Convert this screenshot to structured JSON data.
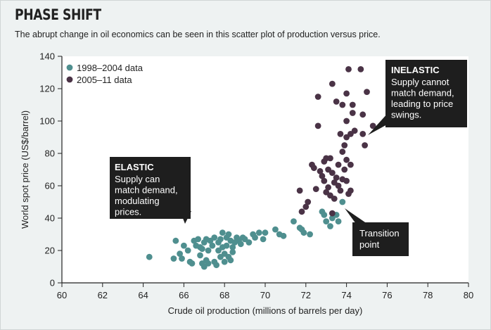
{
  "header": {
    "title": "PHASE SHIFT",
    "subtitle": "The abrupt change in oil economics can be seen in this scatter plot of production versus price."
  },
  "chart_data": {
    "type": "scatter",
    "title": "PHASE SHIFT",
    "subtitle": "The abrupt change in oil economics can be seen in this scatter plot of production versus price.",
    "xlabel": "Crude oil production (millions of barrels per day)",
    "ylabel": "World spot price (US$/barrel)",
    "xlim": [
      60,
      80
    ],
    "ylim": [
      0,
      140
    ],
    "xticks": [
      "60",
      "62",
      "64",
      "66",
      "68",
      "70",
      "72",
      "74",
      "76",
      "78",
      "80"
    ],
    "yticks": [
      "0",
      "20",
      "40",
      "60",
      "80",
      "100",
      "120",
      "140"
    ],
    "grid": false,
    "legend": "top-left",
    "series": [
      {
        "name": "1998–2004 data",
        "color": "#4f8f8f",
        "points": [
          [
            64.3,
            16
          ],
          [
            65.5,
            15
          ],
          [
            65.6,
            26
          ],
          [
            65.8,
            18
          ],
          [
            65.9,
            15
          ],
          [
            66.0,
            23
          ],
          [
            66.2,
            20
          ],
          [
            66.3,
            13
          ],
          [
            66.4,
            12
          ],
          [
            66.5,
            26
          ],
          [
            66.6,
            23
          ],
          [
            66.7,
            27
          ],
          [
            66.8,
            22
          ],
          [
            66.8,
            17
          ],
          [
            66.9,
            21
          ],
          [
            66.9,
            12
          ],
          [
            67.0,
            25
          ],
          [
            67.0,
            10
          ],
          [
            67.1,
            27
          ],
          [
            67.1,
            14
          ],
          [
            67.2,
            20
          ],
          [
            67.2,
            12
          ],
          [
            67.3,
            26
          ],
          [
            67.4,
            23
          ],
          [
            67.5,
            28
          ],
          [
            67.5,
            13
          ],
          [
            67.6,
            11
          ],
          [
            67.7,
            25
          ],
          [
            67.7,
            20
          ],
          [
            67.8,
            27
          ],
          [
            67.8,
            16
          ],
          [
            67.9,
            31
          ],
          [
            67.9,
            22
          ],
          [
            68.0,
            18
          ],
          [
            68.0,
            13
          ],
          [
            68.1,
            28
          ],
          [
            68.1,
            23
          ],
          [
            68.2,
            30
          ],
          [
            68.2,
            16
          ],
          [
            68.3,
            26
          ],
          [
            68.3,
            14
          ],
          [
            68.4,
            22
          ],
          [
            68.4,
            19
          ],
          [
            68.5,
            25
          ],
          [
            68.6,
            28
          ],
          [
            68.7,
            26
          ],
          [
            68.8,
            24
          ],
          [
            68.9,
            28
          ],
          [
            69.0,
            27
          ],
          [
            69.2,
            25
          ],
          [
            69.4,
            30
          ],
          [
            69.5,
            28
          ],
          [
            69.7,
            31
          ],
          [
            69.9,
            27
          ],
          [
            70.0,
            31
          ],
          [
            70.5,
            33
          ],
          [
            70.7,
            30
          ],
          [
            70.9,
            29
          ],
          [
            71.4,
            38
          ],
          [
            71.7,
            34
          ],
          [
            71.8,
            33
          ],
          [
            71.9,
            31
          ],
          [
            72.2,
            30
          ],
          [
            72.8,
            44
          ],
          [
            72.9,
            42
          ],
          [
            73.0,
            38
          ],
          [
            73.2,
            35
          ],
          [
            73.3,
            40
          ],
          [
            73.5,
            42
          ],
          [
            73.6,
            38
          ],
          [
            73.8,
            50
          ]
        ]
      },
      {
        "name": "2005–11 data",
        "color": "#4a3346",
        "points": [
          [
            71.7,
            57
          ],
          [
            71.8,
            44
          ],
          [
            72.0,
            47
          ],
          [
            72.1,
            50
          ],
          [
            72.3,
            73
          ],
          [
            72.4,
            71
          ],
          [
            72.5,
            58
          ],
          [
            72.6,
            115
          ],
          [
            72.6,
            97
          ],
          [
            72.7,
            69
          ],
          [
            72.8,
            66
          ],
          [
            72.9,
            75
          ],
          [
            72.9,
            63
          ],
          [
            73.0,
            77
          ],
          [
            73.0,
            56
          ],
          [
            73.1,
            70
          ],
          [
            73.1,
            59
          ],
          [
            73.2,
            77
          ],
          [
            73.2,
            54
          ],
          [
            73.3,
            43
          ],
          [
            73.3,
            68
          ],
          [
            73.3,
            123
          ],
          [
            73.4,
            52
          ],
          [
            73.4,
            62
          ],
          [
            73.5,
            112
          ],
          [
            73.5,
            65
          ],
          [
            73.6,
            60
          ],
          [
            73.6,
            73
          ],
          [
            73.7,
            92
          ],
          [
            73.7,
            57
          ],
          [
            73.8,
            110
          ],
          [
            73.8,
            81
          ],
          [
            73.8,
            64
          ],
          [
            73.9,
            85
          ],
          [
            73.9,
            70
          ],
          [
            74.0,
            117
          ],
          [
            74.0,
            100
          ],
          [
            74.0,
            90
          ],
          [
            74.0,
            76
          ],
          [
            74.0,
            63
          ],
          [
            74.1,
            132
          ],
          [
            74.1,
            55
          ],
          [
            74.2,
            92
          ],
          [
            74.2,
            73
          ],
          [
            74.2,
            57
          ],
          [
            74.3,
            105
          ],
          [
            74.3,
            110
          ],
          [
            74.4,
            94
          ],
          [
            74.7,
            132
          ],
          [
            74.8,
            104
          ],
          [
            74.9,
            85
          ],
          [
            74.8,
            92
          ],
          [
            75.0,
            118
          ],
          [
            75.3,
            97
          ]
        ]
      }
    ],
    "annotations": [
      {
        "heading": "ELASTIC",
        "lines": [
          "Supply can",
          "match demand,",
          "modulating",
          "prices."
        ]
      },
      {
        "heading": "INELASTIC",
        "lines": [
          "Supply cannot",
          "match demand,",
          "leading to price",
          "swings."
        ]
      },
      {
        "heading": "",
        "lines": [
          "Transition",
          "point"
        ]
      }
    ]
  }
}
